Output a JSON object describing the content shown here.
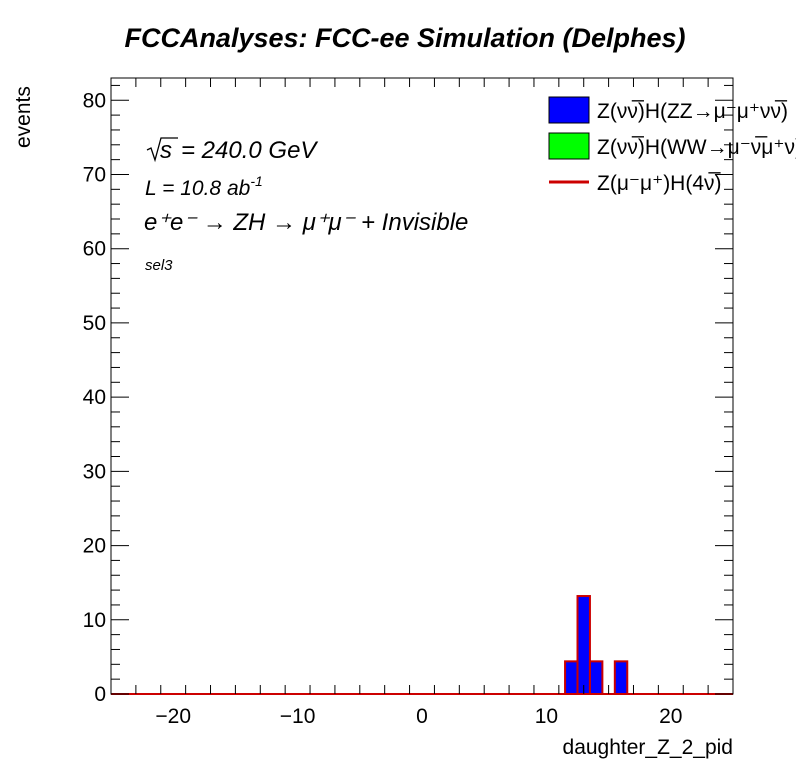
{
  "chart_data": {
    "type": "bar",
    "title": "FCCAnalyses: FCC-ee Simulation (Delphes)",
    "xlabel": "daughter_Z_2_pid",
    "ylabel": "events",
    "xlim": [
      -25,
      25
    ],
    "ylim": [
      0,
      83
    ],
    "x_ticks": [
      -20,
      -10,
      0,
      10,
      20
    ],
    "x_tick_labels": [
      "−20",
      "−10",
      "0",
      "10",
      "20"
    ],
    "y_ticks": [
      0,
      10,
      20,
      30,
      40,
      50,
      60,
      70,
      80
    ],
    "annotations": {
      "sqrt_s": "= 240.0 GeV",
      "lumi_text": "L = 10.8 ab",
      "lumi_exp": "-1",
      "process": "e⁺e⁻ → ZH → μ⁺μ⁻ + Invisible",
      "selection": "sel3"
    },
    "legend": {
      "placement": "top-right",
      "entries": [
        {
          "label": "Z(νν̅)H(ZZ→μ⁻μ⁺νν̅)",
          "style": "fill",
          "color": "#0000ff"
        },
        {
          "label": "Z(νν̅)H(WW→μ⁻ν̅μ⁺ν)",
          "style": "fill",
          "color": "#00ff00"
        },
        {
          "label": "Z(μ⁻μ⁺)H(4ν̅)",
          "style": "line",
          "color": "#cc0000"
        }
      ]
    },
    "bin_width": 1,
    "series": [
      {
        "name": "Z(νν̅)H(ZZ→μ⁻μ⁺νν̅)",
        "color": "#0000ff",
        "bins": [
          {
            "x_low": 11.5,
            "x_high": 12.5,
            "value": 4.4
          },
          {
            "x_low": 12.5,
            "x_high": 13.5,
            "value": 13.2
          },
          {
            "x_low": 13.5,
            "x_high": 14.5,
            "value": 4.4
          },
          {
            "x_low": 15.5,
            "x_high": 16.5,
            "value": 4.4
          }
        ]
      },
      {
        "name": "Z(νν̅)H(WW→μ⁻ν̅μ⁺ν)",
        "color": "#00ff00",
        "bins": []
      },
      {
        "name": "Z(μ⁻μ⁺)H(4ν̅)",
        "color": "#cc0000",
        "bins": []
      }
    ]
  }
}
